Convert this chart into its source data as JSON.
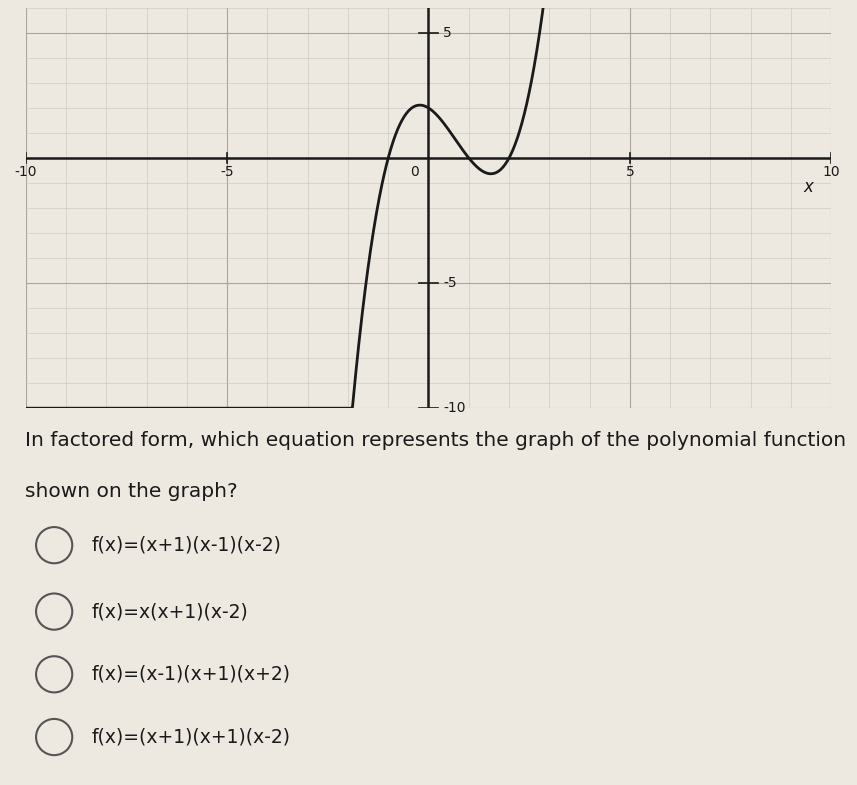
{
  "graph": {
    "xlim": [
      -10,
      10
    ],
    "ylim": [
      -10,
      6
    ],
    "xtick_labels": [
      [
        -10,
        "-10"
      ],
      [
        -5,
        "-5"
      ],
      [
        5,
        "5"
      ],
      [
        10,
        "10"
      ]
    ],
    "ytick_labels": [
      [
        5,
        "5"
      ],
      [
        -5,
        "-5"
      ],
      [
        -10,
        "-10"
      ]
    ],
    "xlabel": "x",
    "grid_minor_color": "#c8c4bc",
    "grid_major_color": "#aaa49a",
    "axis_color": "#1a1a1a",
    "curve_color": "#1a1a1a",
    "curve_linewidth": 2.0,
    "bg_color": "#ede9e1"
  },
  "question": "In factored form, which equation represents the graph of the polynomial function\nshown on the graph?",
  "choices": [
    "f(x)=(x+1)(x-1)(x-2)",
    "f(x)=x(x+1)(x-2)",
    "f(x)=(x-1)(x+1)(x+2)",
    "f(x)=(x+1)(x+1)(x-2)"
  ],
  "question_fontsize": 14.5,
  "choices_fontsize": 13.5,
  "text_color": "#1a1a1a",
  "bg_color_full": "#ede9e1",
  "circle_color": "#555555"
}
